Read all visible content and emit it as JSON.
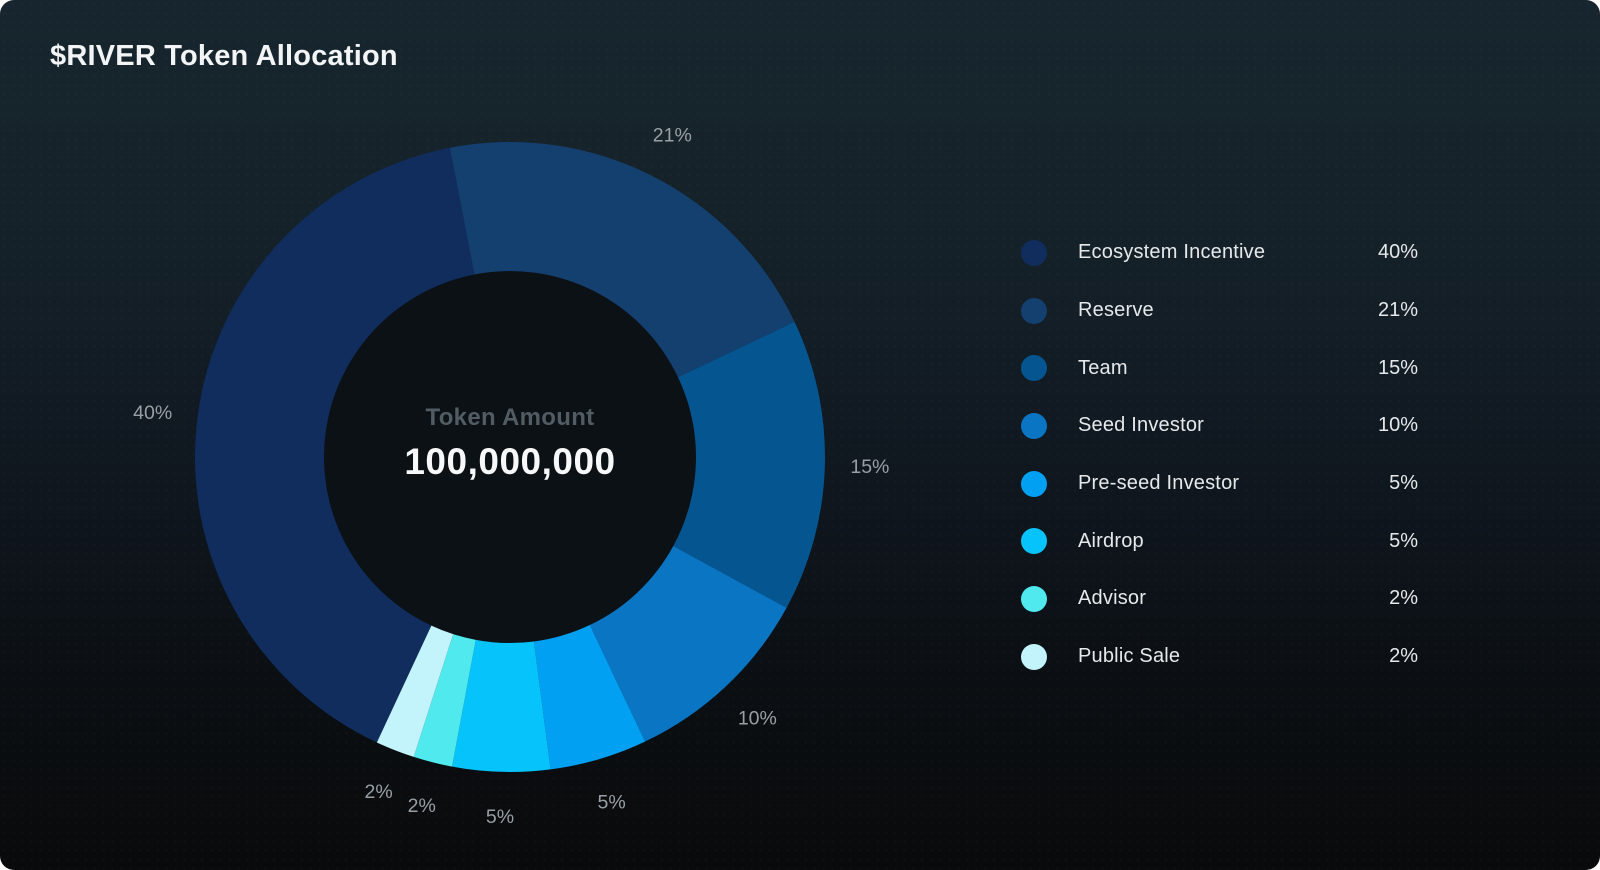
{
  "page": {
    "title": "$RIVER Token Allocation"
  },
  "colors": {
    "background_top": "#17262e",
    "background_bottom": "#090a0b",
    "title_text": "#f2f4f5",
    "slice_label_text": "#99a0a5",
    "legend_text": "#e6e9eb",
    "center_label_text": "#515c63",
    "center_value_text": "#f6f8f9",
    "donut_hole": "#0c1116"
  },
  "chart_data": {
    "type": "pie",
    "title": "$RIVER Token Allocation",
    "donut": true,
    "center_label": "Token Amount",
    "center_value": "100,000,000",
    "legend_position": "right",
    "start_angle_deg": 205,
    "outer_radius": 315,
    "inner_radius": 186,
    "label_radius": 360,
    "segments": [
      {
        "label": "Ecosystem Incentive",
        "value": 40,
        "display": "40%",
        "color": "#102d5e"
      },
      {
        "label": "Reserve",
        "value": 21,
        "display": "21%",
        "color": "#144070"
      },
      {
        "label": "Team",
        "value": 15,
        "display": "15%",
        "color": "#045590"
      },
      {
        "label": "Seed Investor",
        "value": 10,
        "display": "10%",
        "color": "#0a75c2"
      },
      {
        "label": "Pre-seed Investor",
        "value": 5,
        "display": "5%",
        "color": "#02a0f2"
      },
      {
        "label": "Airdrop",
        "value": 5,
        "display": "5%",
        "color": "#06c3fb"
      },
      {
        "label": "Advisor",
        "value": 2,
        "display": "2%",
        "color": "#4fe9ee"
      },
      {
        "label": "Public Sale",
        "value": 2,
        "display": "2%",
        "color": "#c4f4fb"
      }
    ]
  }
}
